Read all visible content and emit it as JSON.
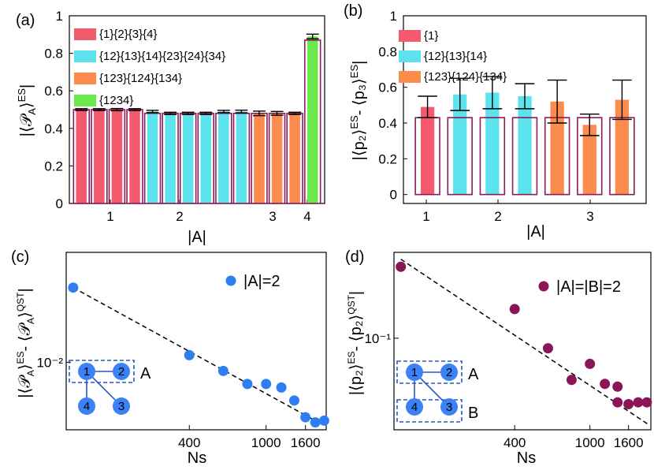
{
  "colors": {
    "red": "#f45a6e",
    "cyan": "#5de3ee",
    "orange": "#fb8c4e",
    "green": "#6be84a",
    "outline": "#8b1a5a",
    "blue": "#2f7df2",
    "purple": "#8a1658",
    "nodeFill": "#3b82f6",
    "boxStroke": "#2a56c9"
  },
  "chart_data": [
    {
      "panel": "(a)",
      "type": "bar",
      "ylabel": "|⟨𝒫_A⟩^ES|",
      "xlabel": "|A|",
      "ylim": [
        0,
        1
      ],
      "yticks": [
        0,
        0.2,
        0.4,
        0.6,
        0.8,
        1
      ],
      "ytick_labels": [
        "0",
        "0.2",
        "0.4",
        "0.6",
        "0.8",
        "1"
      ],
      "xtick_labels": [
        "1",
        "2",
        "3",
        "4"
      ],
      "legend": [
        "{1}{2}{3}{4}",
        "{12}{13}{14}{23}{24}{34}",
        "{123}{124}{134}",
        "{1234}"
      ],
      "bars": [
        {
          "group": 1,
          "value": 0.5,
          "err": 0.005,
          "ref": 0.5
        },
        {
          "group": 1,
          "value": 0.5,
          "err": 0.005,
          "ref": 0.5
        },
        {
          "group": 1,
          "value": 0.5,
          "err": 0.006,
          "ref": 0.5
        },
        {
          "group": 1,
          "value": 0.5,
          "err": 0.005,
          "ref": 0.5
        },
        {
          "group": 2,
          "value": 0.49,
          "err": 0.006,
          "ref": 0.48
        },
        {
          "group": 2,
          "value": 0.48,
          "err": 0.006,
          "ref": 0.48
        },
        {
          "group": 2,
          "value": 0.48,
          "err": 0.006,
          "ref": 0.48
        },
        {
          "group": 2,
          "value": 0.48,
          "err": 0.006,
          "ref": 0.48
        },
        {
          "group": 2,
          "value": 0.49,
          "err": 0.006,
          "ref": 0.48
        },
        {
          "group": 2,
          "value": 0.49,
          "err": 0.007,
          "ref": 0.48
        },
        {
          "group": 3,
          "value": 0.48,
          "err": 0.012,
          "ref": 0.48
        },
        {
          "group": 3,
          "value": 0.48,
          "err": 0.01,
          "ref": 0.48
        },
        {
          "group": 3,
          "value": 0.48,
          "err": 0.006,
          "ref": 0.48
        },
        {
          "group": 4,
          "value": 0.89,
          "err": 0.012,
          "ref": 0.87
        }
      ]
    },
    {
      "panel": "(b)",
      "type": "bar",
      "ylabel": "|⟨p₂⟩^ES - ⟨p₃⟩^ES|",
      "xlabel": "|A|",
      "ylim": [
        -0.05,
        1
      ],
      "yticks": [
        0,
        0.2,
        0.4,
        0.6,
        0.8,
        1
      ],
      "ytick_labels": [
        "0",
        "0.2",
        "0.4",
        "0.6",
        "0.8",
        "1"
      ],
      "xtick_labels": [
        "1",
        "2",
        "3"
      ],
      "legend": [
        "{1}",
        "{12}{13}{14}",
        "{123}{124}{134}"
      ],
      "bars": [
        {
          "group": 1,
          "value": 0.49,
          "err": 0.06,
          "ref": 0.43
        },
        {
          "group": 2,
          "value": 0.56,
          "err": 0.09,
          "ref": 0.43
        },
        {
          "group": 2,
          "value": 0.57,
          "err": 0.09,
          "ref": 0.43
        },
        {
          "group": 2,
          "value": 0.55,
          "err": 0.07,
          "ref": 0.43
        },
        {
          "group": 3,
          "value": 0.52,
          "err": 0.12,
          "ref": 0.43
        },
        {
          "group": 3,
          "value": 0.39,
          "err": 0.06,
          "ref": 0.43
        },
        {
          "group": 3,
          "value": 0.53,
          "err": 0.11,
          "ref": 0.43
        }
      ]
    },
    {
      "panel": "(c)",
      "type": "scatter",
      "ylabel": "|⟨𝒫_A⟩^ES - ⟨𝒫_A⟩^QST|",
      "xlabel": "Ns",
      "xscale": "log",
      "yscale": "log",
      "xlim": [
        92,
        2050
      ],
      "ylim": [
        0.0048,
        0.033
      ],
      "xtick_values": [
        400,
        1000,
        1600
      ],
      "xtick_labels": [
        "400",
        "1000",
        "1600"
      ],
      "ytick_values": [
        0.01
      ],
      "ytick_labels": [
        "10⁻²"
      ],
      "legend": "|A|=2",
      "points": [
        {
          "x": 100,
          "y": 0.0225
        },
        {
          "x": 400,
          "y": 0.0108
        },
        {
          "x": 600,
          "y": 0.0091
        },
        {
          "x": 800,
          "y": 0.0079
        },
        {
          "x": 1000,
          "y": 0.0079
        },
        {
          "x": 1200,
          "y": 0.0076
        },
        {
          "x": 1400,
          "y": 0.0066
        },
        {
          "x": 1600,
          "y": 0.0055
        },
        {
          "x": 1800,
          "y": 0.0052
        },
        {
          "x": 2000,
          "y": 0.0053
        }
      ],
      "fit": {
        "x": [
          100,
          1800
        ],
        "y": [
          0.0225,
          0.0053
        ]
      },
      "graph_nodes": [
        "1",
        "2",
        "3",
        "4"
      ],
      "box_labels": [
        "A"
      ]
    },
    {
      "panel": "(d)",
      "type": "scatter",
      "ylabel": "|⟨p₂⟩^ES - ⟨p₂⟩^QST|",
      "xlabel": "Ns",
      "xscale": "log",
      "yscale": "log",
      "xlim": [
        92,
        2100
      ],
      "ylim": [
        0.028,
        0.33
      ],
      "xtick_values": [
        400,
        1000,
        1600
      ],
      "xtick_labels": [
        "400",
        "1000",
        "1600"
      ],
      "ytick_values": [
        0.1
      ],
      "ytick_labels": [
        "10⁻¹"
      ],
      "legend": "|A|=|B|=2",
      "points": [
        {
          "x": 100,
          "y": 0.27
        },
        {
          "x": 400,
          "y": 0.15
        },
        {
          "x": 600,
          "y": 0.087
        },
        {
          "x": 800,
          "y": 0.056
        },
        {
          "x": 1000,
          "y": 0.07
        },
        {
          "x": 1200,
          "y": 0.053
        },
        {
          "x": 1400,
          "y": 0.041
        },
        {
          "x": 1400,
          "y": 0.051
        },
        {
          "x": 1600,
          "y": 0.04
        },
        {
          "x": 1800,
          "y": 0.041
        },
        {
          "x": 2000,
          "y": 0.041
        }
      ],
      "fit": {
        "x": [
          100,
          2050
        ],
        "y": [
          0.3,
          0.03
        ]
      },
      "graph_nodes": [
        "1",
        "2",
        "3",
        "4"
      ],
      "box_labels": [
        "A",
        "B"
      ]
    }
  ]
}
